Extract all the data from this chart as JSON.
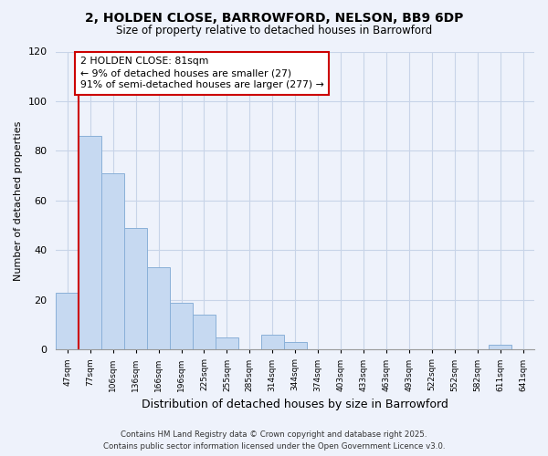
{
  "title1": "2, HOLDEN CLOSE, BARROWFORD, NELSON, BB9 6DP",
  "title2": "Size of property relative to detached houses in Barrowford",
  "xlabel": "Distribution of detached houses by size in Barrowford",
  "ylabel": "Number of detached properties",
  "bin_labels": [
    "47sqm",
    "77sqm",
    "106sqm",
    "136sqm",
    "166sqm",
    "196sqm",
    "225sqm",
    "255sqm",
    "285sqm",
    "314sqm",
    "344sqm",
    "374sqm",
    "403sqm",
    "433sqm",
    "463sqm",
    "493sqm",
    "522sqm",
    "552sqm",
    "582sqm",
    "611sqm",
    "641sqm"
  ],
  "bar_values": [
    23,
    86,
    71,
    49,
    33,
    19,
    14,
    5,
    0,
    6,
    3,
    0,
    0,
    0,
    0,
    0,
    0,
    0,
    0,
    2,
    0
  ],
  "bar_color": "#c6d9f1",
  "bar_edge_color": "#8ab0d8",
  "vline_color": "#cc0000",
  "annotation_title": "2 HOLDEN CLOSE: 81sqm",
  "annotation_line1": "← 9% of detached houses are smaller (27)",
  "annotation_line2": "91% of semi-detached houses are larger (277) →",
  "ylim": [
    0,
    120
  ],
  "yticks": [
    0,
    20,
    40,
    60,
    80,
    100,
    120
  ],
  "footer1": "Contains HM Land Registry data © Crown copyright and database right 2025.",
  "footer2": "Contains public sector information licensed under the Open Government Licence v3.0.",
  "bg_color": "#eef2fb",
  "grid_color": "#c8d4e8"
}
